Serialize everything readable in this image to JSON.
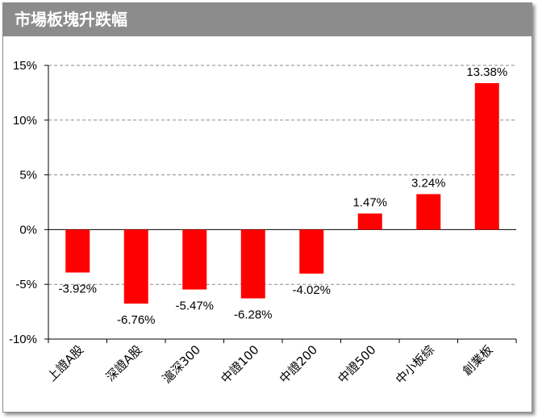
{
  "header": {
    "title": "市場板塊升跌幅"
  },
  "chart_data": {
    "type": "bar",
    "categories": [
      "上證A股",
      "深證A股",
      "滬深300",
      "中證100",
      "中證200",
      "中證500",
      "中小板綜",
      "創業板"
    ],
    "values": [
      -3.92,
      -6.76,
      -5.47,
      -6.28,
      -4.02,
      1.47,
      3.24,
      13.38
    ],
    "data_labels": [
      "-3.92%",
      "-6.76%",
      "-5.47%",
      "-6.28%",
      "-4.02%",
      "1.47%",
      "3.24%",
      "13.38%"
    ],
    "ylim": [
      -10,
      15
    ],
    "yticks": [
      15,
      10,
      5,
      0,
      -5,
      -10
    ],
    "ytick_labels": [
      "15%",
      "10%",
      "5%",
      "0%",
      "-5%",
      "-10%"
    ],
    "bar_color": "#ff0000",
    "grid": true
  }
}
